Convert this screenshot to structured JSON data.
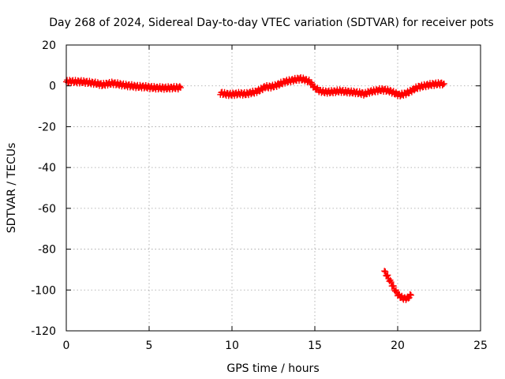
{
  "chart_data": {
    "type": "scatter",
    "title": "Day 268 of 2024, Sidereal Day-to-day VTEC variation (SDTVAR) for receiver pots",
    "xlabel": "GPS time / hours",
    "ylabel": "SDTVAR / TECUs",
    "xlim": [
      0,
      25
    ],
    "ylim": [
      -120,
      20
    ],
    "xticks": [
      0,
      5,
      10,
      15,
      20,
      25
    ],
    "yticks": [
      20,
      0,
      -20,
      -40,
      -60,
      -80,
      -100,
      -120
    ],
    "grid": true,
    "marker": "plus",
    "series": [
      {
        "name": "SDTVAR",
        "color": "#ff0000",
        "segments": [
          [
            [
              0.0,
              2.0
            ],
            [
              0.3,
              2.2
            ],
            [
              0.6,
              2.0
            ],
            [
              0.9,
              2.0
            ],
            [
              1.2,
              1.8
            ],
            [
              1.5,
              1.5
            ],
            [
              1.8,
              1.2
            ],
            [
              2.0,
              0.8
            ],
            [
              2.2,
              0.5
            ],
            [
              2.5,
              1.0
            ],
            [
              2.8,
              1.3
            ],
            [
              3.0,
              1.0
            ],
            [
              3.3,
              0.6
            ],
            [
              3.6,
              0.2
            ],
            [
              3.9,
              0.0
            ],
            [
              4.2,
              -0.3
            ],
            [
              4.5,
              -0.4
            ],
            [
              4.8,
              -0.5
            ],
            [
              5.1,
              -0.8
            ],
            [
              5.4,
              -1.0
            ],
            [
              5.7,
              -1.0
            ],
            [
              6.0,
              -1.1
            ],
            [
              6.3,
              -1.0
            ],
            [
              6.6,
              -0.9
            ],
            [
              6.9,
              -0.9
            ]
          ],
          [
            [
              9.3,
              -3.5
            ],
            [
              9.6,
              -4.0
            ],
            [
              9.9,
              -4.2
            ],
            [
              10.2,
              -4.0
            ],
            [
              10.5,
              -3.8
            ],
            [
              10.8,
              -4.0
            ],
            [
              11.1,
              -3.5
            ],
            [
              11.4,
              -3.0
            ],
            [
              11.7,
              -2.0
            ],
            [
              12.0,
              -0.5
            ],
            [
              12.3,
              -0.5
            ],
            [
              12.6,
              0.0
            ],
            [
              12.9,
              1.0
            ],
            [
              13.2,
              2.0
            ],
            [
              13.5,
              2.5
            ],
            [
              13.8,
              3.0
            ],
            [
              14.1,
              3.5
            ],
            [
              14.4,
              3.0
            ],
            [
              14.7,
              2.0
            ],
            [
              15.0,
              -1.0
            ],
            [
              15.3,
              -2.5
            ],
            [
              15.6,
              -3.0
            ],
            [
              15.9,
              -3.0
            ],
            [
              16.2,
              -2.8
            ],
            [
              16.5,
              -2.5
            ],
            [
              16.8,
              -2.8
            ],
            [
              17.1,
              -3.0
            ],
            [
              17.4,
              -3.2
            ],
            [
              17.7,
              -3.5
            ],
            [
              18.0,
              -4.0
            ],
            [
              18.3,
              -3.0
            ],
            [
              18.6,
              -2.5
            ],
            [
              18.9,
              -2.0
            ],
            [
              19.2,
              -2.0
            ],
            [
              19.5,
              -2.5
            ],
            [
              19.8,
              -3.5
            ],
            [
              20.1,
              -4.5
            ],
            [
              20.4,
              -4.0
            ],
            [
              20.7,
              -3.0
            ],
            [
              21.0,
              -1.5
            ],
            [
              21.3,
              -0.5
            ],
            [
              21.6,
              0.0
            ],
            [
              21.9,
              0.5
            ],
            [
              22.2,
              0.8
            ],
            [
              22.5,
              1.0
            ],
            [
              22.8,
              1.0
            ]
          ],
          [
            [
              19.2,
              -91.0
            ],
            [
              19.4,
              -93.5
            ],
            [
              19.6,
              -96.5
            ],
            [
              19.8,
              -99.5
            ],
            [
              20.0,
              -102.0
            ],
            [
              20.2,
              -103.5
            ],
            [
              20.4,
              -104.2
            ],
            [
              20.6,
              -104.0
            ],
            [
              20.8,
              -102.5
            ]
          ]
        ]
      }
    ]
  }
}
